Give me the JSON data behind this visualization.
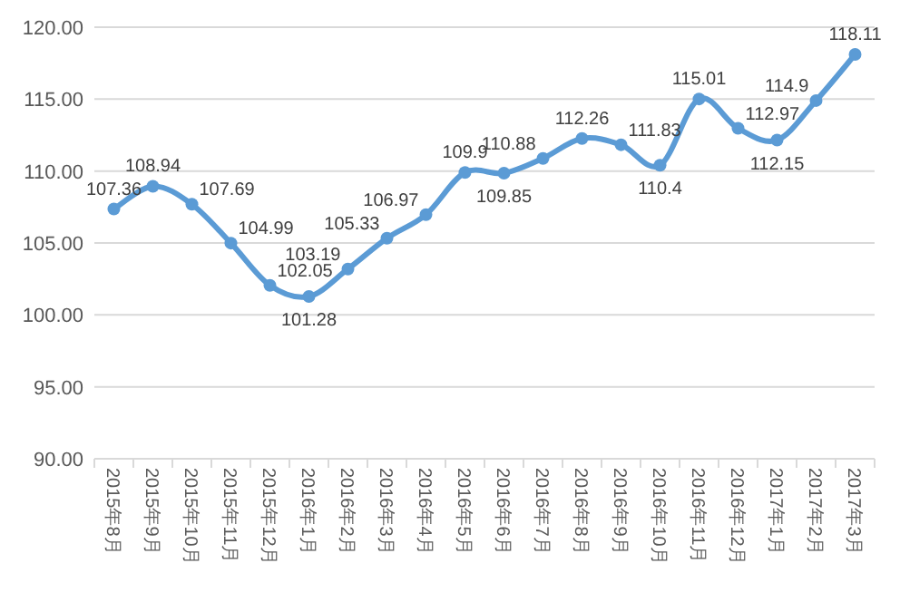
{
  "chart_data": {
    "type": "line",
    "categories": [
      "2015年8月",
      "2015年9月",
      "2015年10月",
      "2015年11月",
      "2015年12月",
      "2016年1月",
      "2016年2月",
      "2016年3月",
      "2016年4月",
      "2016年5月",
      "2016年6月",
      "2016年7月",
      "2016年8月",
      "2016年9月",
      "2016年10月",
      "2016年11月",
      "2016年12月",
      "2017年1月",
      "2017年2月",
      "2017年3月"
    ],
    "series": [
      {
        "color": "#5b9bd5",
        "values": [
          107.36,
          108.94,
          107.69,
          104.99,
          102.05,
          101.28,
          103.19,
          105.33,
          106.97,
          109.9,
          109.85,
          110.88,
          112.26,
          111.83,
          110.4,
          115.01,
          112.97,
          112.15,
          114.9,
          118.11
        ]
      }
    ],
    "ylim": [
      90,
      120
    ],
    "yticks": [
      {
        "value": 90,
        "label": "90.00"
      },
      {
        "value": 95,
        "label": "95.00"
      },
      {
        "value": 100,
        "label": "100.00"
      },
      {
        "value": 105,
        "label": "105.00"
      },
      {
        "value": 110,
        "label": "110.00"
      },
      {
        "value": 115,
        "label": "115.00"
      },
      {
        "value": 120,
        "label": "120.00"
      }
    ],
    "grid": "y",
    "marker": "circle",
    "line_style": "solid",
    "data_labels": true
  }
}
